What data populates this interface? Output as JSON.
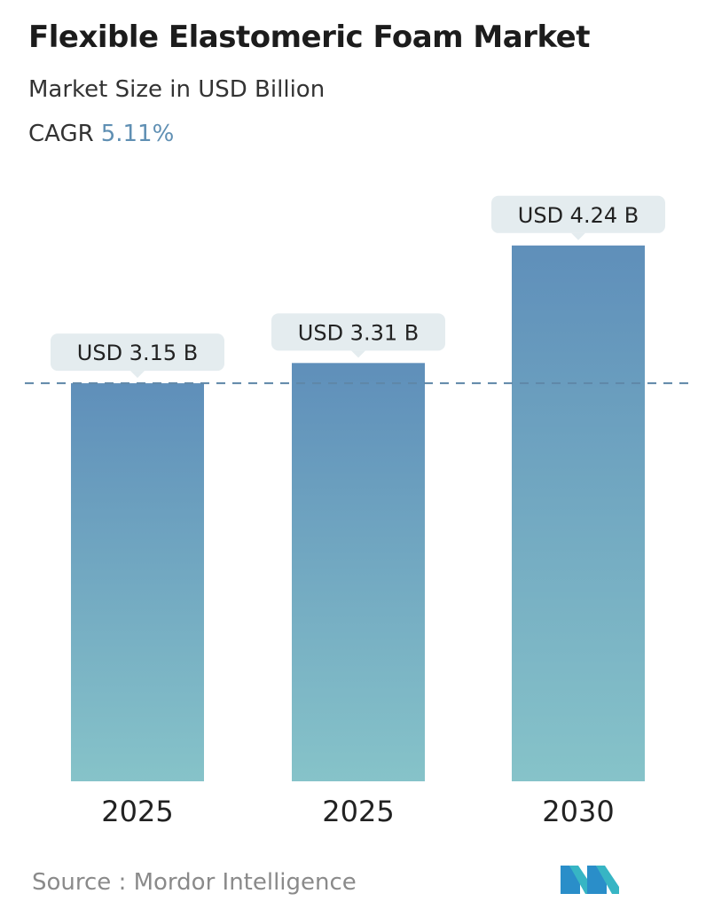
{
  "header": {
    "title": "Flexible Elastomeric Foam Market",
    "subtitle": "Market Size in USD Billion",
    "cagr_label": "CAGR",
    "cagr_value": "5.11%"
  },
  "chart_data": {
    "type": "bar",
    "categories": [
      "2025",
      "2025",
      "2030"
    ],
    "values": [
      3.15,
      3.31,
      4.24
    ],
    "data_labels": [
      "USD 3.15 B",
      "USD 3.31 B",
      "USD 4.24 B"
    ],
    "title": "Flexible Elastomeric Foam Market",
    "subtitle": "Market Size in USD Billion",
    "reference_line": 3.15,
    "colors": {
      "bar_top": "#5f8fba",
      "bar_bottom": "#86c3c9",
      "label_bg": "#e4ecef",
      "dashed_line": "#5f87a8"
    }
  },
  "footer": {
    "source": "Source :  Mordor Intelligence",
    "logo_icon": "mordor-intelligence-logo-icon"
  }
}
